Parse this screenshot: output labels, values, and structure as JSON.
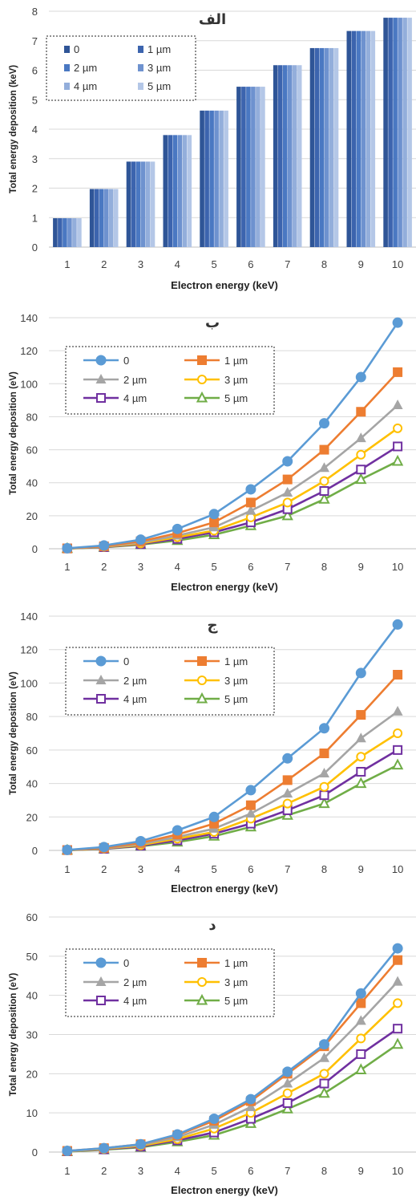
{
  "chart_data": [
    {
      "type": "bar",
      "title": "الف",
      "xlabel": "Electron energy (keV)",
      "ylabel": "Total energy deposition (keV)",
      "ylim": [
        0,
        8
      ],
      "yticks": [
        0,
        1,
        2,
        3,
        4,
        5,
        6,
        7,
        8
      ],
      "categories": [
        "1",
        "2",
        "3",
        "4",
        "5",
        "6",
        "7",
        "8",
        "9",
        "10"
      ],
      "legend_position": "top-left",
      "grid": true,
      "series": [
        {
          "name": "0",
          "color": "#2F5597",
          "values": [
            0.98,
            1.97,
            2.9,
            3.8,
            4.63,
            5.44,
            6.17,
            6.75,
            7.33,
            7.78
          ]
        },
        {
          "name": "1 µm",
          "color": "#3C64AE",
          "values": [
            0.98,
            1.97,
            2.9,
            3.8,
            4.63,
            5.44,
            6.17,
            6.75,
            7.33,
            7.78
          ]
        },
        {
          "name": "2 µm",
          "color": "#4A78C2",
          "values": [
            0.98,
            1.97,
            2.9,
            3.8,
            4.63,
            5.44,
            6.17,
            6.75,
            7.33,
            7.78
          ]
        },
        {
          "name": "3 µm",
          "color": "#6E92CF",
          "values": [
            0.98,
            1.97,
            2.9,
            3.8,
            4.63,
            5.44,
            6.17,
            6.75,
            7.33,
            7.78
          ]
        },
        {
          "name": "4 µm",
          "color": "#93AEDB",
          "values": [
            0.98,
            1.97,
            2.9,
            3.8,
            4.63,
            5.44,
            6.17,
            6.75,
            7.33,
            7.78
          ]
        },
        {
          "name": "5 µm",
          "color": "#B4C7E7",
          "values": [
            0.98,
            1.97,
            2.9,
            3.8,
            4.63,
            5.44,
            6.17,
            6.75,
            7.33,
            7.78
          ]
        }
      ]
    },
    {
      "type": "line",
      "title": "ب",
      "xlabel": "Electron energy (keV)",
      "ylabel": "Total energy deposition (eV)",
      "ylim": [
        0,
        140
      ],
      "yticks": [
        0,
        20,
        40,
        60,
        80,
        100,
        120,
        140
      ],
      "x": [
        1,
        2,
        3,
        4,
        5,
        6,
        7,
        8,
        9,
        10
      ],
      "legend_position": "top-left",
      "grid": true,
      "series": [
        {
          "name": "0",
          "color": "#5B9BD5",
          "marker": "circle",
          "values": [
            0.3,
            2,
            5.5,
            12,
            21,
            36,
            53,
            76,
            104,
            137
          ]
        },
        {
          "name": "1 µm",
          "color": "#ED7D31",
          "marker": "square",
          "values": [
            0.2,
            1.5,
            4.5,
            9.5,
            16,
            28,
            42,
            60,
            83,
            107
          ]
        },
        {
          "name": "2 µm",
          "color": "#A5A5A5",
          "marker": "triangle",
          "values": [
            0.2,
            1.3,
            3.8,
            8,
            13,
            23,
            34,
            49,
            67,
            87
          ]
        },
        {
          "name": "3 µm",
          "color": "#FFC000",
          "marker": "circle-open",
          "values": [
            0.2,
            1.2,
            3.2,
            7,
            11,
            19,
            28,
            41,
            57,
            73
          ]
        },
        {
          "name": "4 µm",
          "color": "#7030A0",
          "marker": "square-open",
          "values": [
            0.2,
            1,
            2.8,
            6,
            10,
            16,
            24,
            35,
            48,
            62
          ]
        },
        {
          "name": "5 µm",
          "color": "#70AD47",
          "marker": "triangle-open",
          "values": [
            0.1,
            0.9,
            2.5,
            5,
            8.5,
            14,
            20,
            30,
            42,
            53
          ]
        }
      ]
    },
    {
      "type": "line",
      "title": "ج",
      "xlabel": "Electron energy (keV)",
      "ylabel": "Total energy deposition (eV)",
      "ylim": [
        0,
        140
      ],
      "yticks": [
        0,
        20,
        40,
        60,
        80,
        100,
        120,
        140
      ],
      "x": [
        1,
        2,
        3,
        4,
        5,
        6,
        7,
        8,
        9,
        10
      ],
      "legend_position": "top-left",
      "grid": true,
      "series": [
        {
          "name": "0",
          "color": "#5B9BD5",
          "marker": "circle",
          "values": [
            0.3,
            2,
            5.5,
            12,
            20,
            36,
            55,
            73,
            106,
            135
          ]
        },
        {
          "name": "1 µm",
          "color": "#ED7D31",
          "marker": "square",
          "values": [
            0.2,
            1.5,
            4.5,
            9.5,
            16,
            27,
            42,
            58,
            81,
            105
          ]
        },
        {
          "name": "2 µm",
          "color": "#A5A5A5",
          "marker": "triangle",
          "values": [
            0.2,
            1.3,
            3.8,
            8,
            13,
            22,
            34,
            46,
            67,
            83
          ]
        },
        {
          "name": "3 µm",
          "color": "#FFC000",
          "marker": "circle-open",
          "values": [
            0.2,
            1.2,
            3.2,
            7,
            11,
            19,
            28,
            38,
            56,
            70
          ]
        },
        {
          "name": "4 µm",
          "color": "#7030A0",
          "marker": "square-open",
          "values": [
            0.2,
            1,
            2.8,
            6,
            10,
            16,
            24,
            33,
            47,
            60
          ]
        },
        {
          "name": "5 µm",
          "color": "#70AD47",
          "marker": "triangle-open",
          "values": [
            0.1,
            0.9,
            2.5,
            5,
            8.5,
            14,
            21,
            28,
            40,
            51
          ]
        }
      ]
    },
    {
      "type": "line",
      "title": "د",
      "xlabel": "Electron energy (keV)",
      "ylabel": "Total energy deposition (eV)",
      "ylim": [
        0,
        60
      ],
      "yticks": [
        0,
        10,
        20,
        30,
        40,
        50,
        60
      ],
      "x": [
        1,
        2,
        3,
        4,
        5,
        6,
        7,
        8,
        9,
        10
      ],
      "legend_position": "top-left",
      "grid": true,
      "series": [
        {
          "name": "0",
          "color": "#5B9BD5",
          "marker": "circle",
          "values": [
            0.3,
            1,
            2,
            4.5,
            8.5,
            13.5,
            20.5,
            27.5,
            40.5,
            52
          ]
        },
        {
          "name": "1 µm",
          "color": "#ED7D31",
          "marker": "square",
          "values": [
            0.3,
            1,
            2,
            4.3,
            8,
            13,
            20,
            27,
            38,
            49
          ]
        },
        {
          "name": "2 µm",
          "color": "#A5A5A5",
          "marker": "triangle",
          "values": [
            0.2,
            0.9,
            1.8,
            3.8,
            7,
            11.5,
            17.5,
            24,
            33.5,
            43.5
          ]
        },
        {
          "name": "3 µm",
          "color": "#FFC000",
          "marker": "circle-open",
          "values": [
            0.2,
            0.8,
            1.6,
            3.3,
            6,
            10,
            15,
            20,
            29,
            38
          ]
        },
        {
          "name": "4 µm",
          "color": "#7030A0",
          "marker": "square-open",
          "values": [
            0.2,
            0.7,
            1.4,
            3,
            5,
            8.5,
            12.5,
            17.5,
            25,
            31.5
          ]
        },
        {
          "name": "5 µm",
          "color": "#70AD47",
          "marker": "triangle-open",
          "values": [
            0.1,
            0.6,
            1.2,
            2.6,
            4.3,
            7.3,
            11,
            15,
            21,
            27.5
          ]
        }
      ]
    }
  ]
}
